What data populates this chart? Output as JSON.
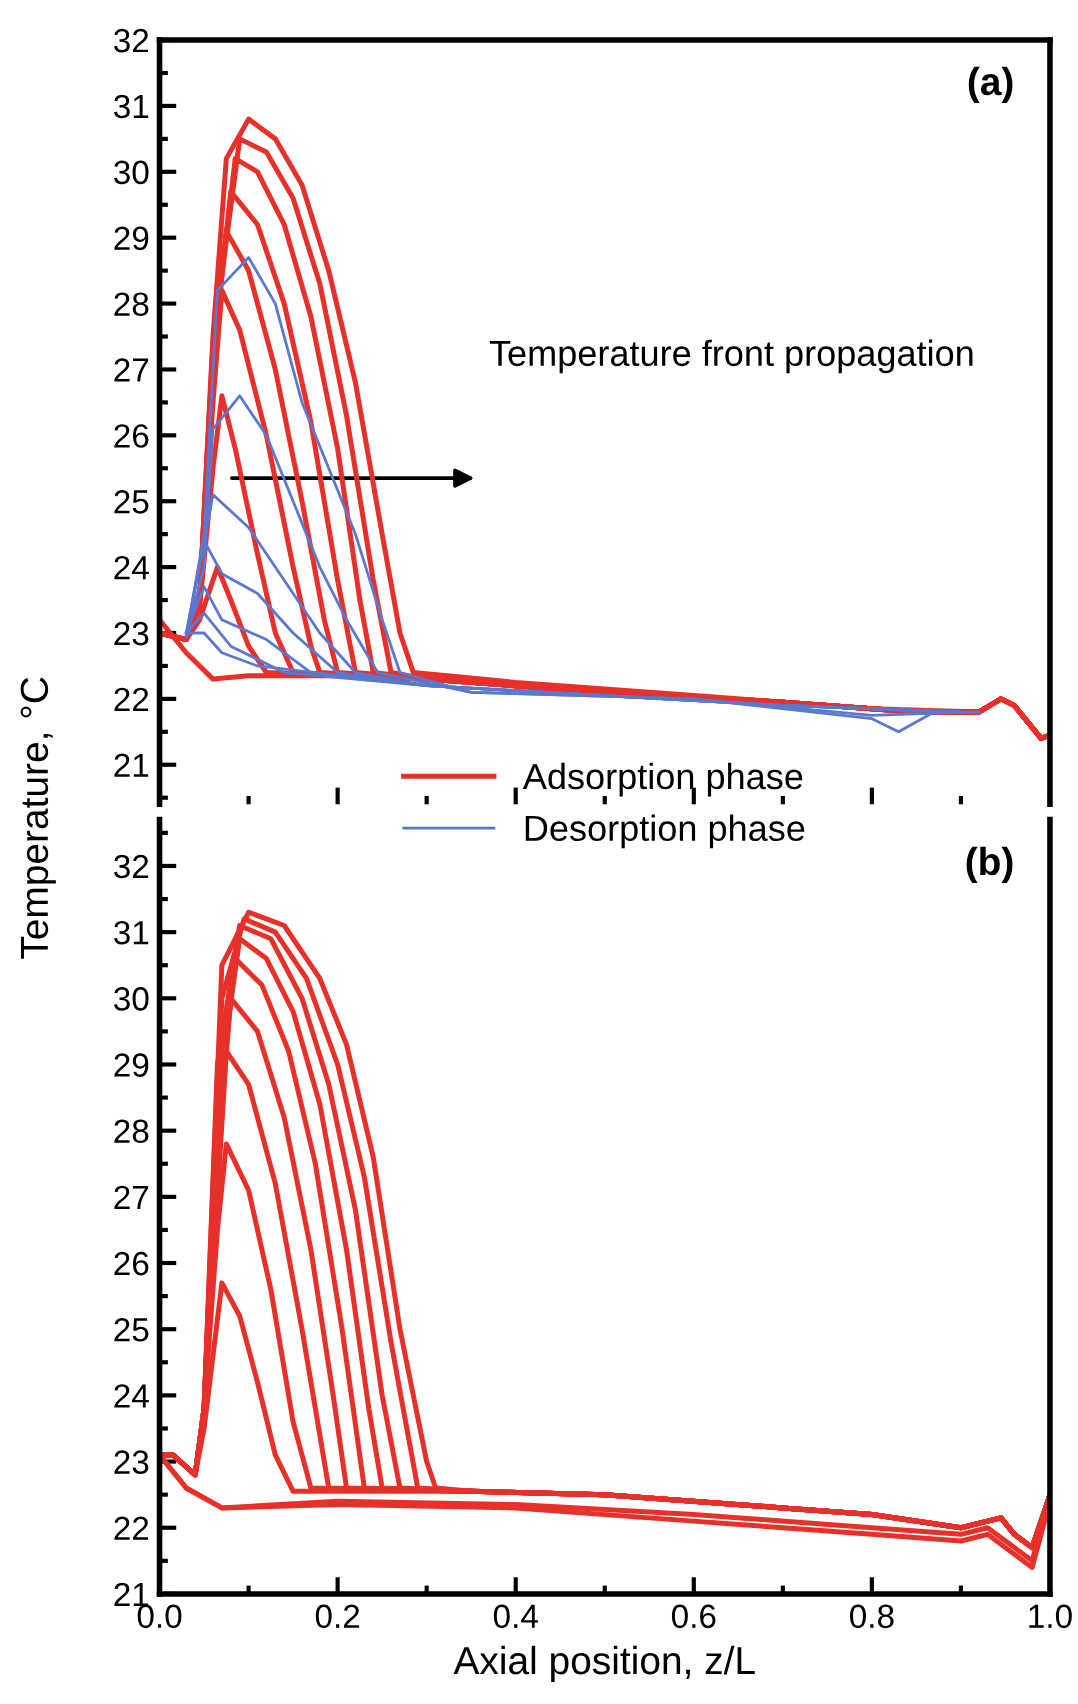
{
  "chart_data": [
    {
      "type": "line",
      "title": "(a)",
      "ylabel": "Temperature, °C",
      "annotations": [
        "Temperature front propagation"
      ],
      "xlim": [
        0,
        1
      ],
      "ylim": [
        20.4,
        32
      ],
      "xticks": [
        0,
        0.2,
        0.4,
        0.6,
        0.8,
        1
      ],
      "yticks": [
        21,
        22,
        23,
        24,
        25,
        26,
        27,
        28,
        29,
        30,
        31,
        32
      ],
      "tick_labels": "y",
      "legend": "bottom",
      "grid": false,
      "marker": "none",
      "line_style": "solid",
      "series": [
        {
          "name": "Adsorption phase",
          "color": "#e8302a",
          "x": [
            0,
            0.03,
            0.06,
            0.1,
            0.2,
            0.3,
            0.5,
            0.7,
            0.85,
            0.92,
            0.945,
            0.96,
            0.99,
            1.0
          ],
          "values": [
            23.2,
            22.7,
            22.3,
            22.35,
            22.35,
            22.3,
            22.1,
            21.95,
            21.8,
            21.8,
            22.0,
            21.9,
            21.4,
            21.45
          ]
        },
        {
          "color": "#e8302a",
          "x": [
            0,
            0.03,
            0.045,
            0.065,
            0.08,
            0.1,
            0.12,
            0.3,
            0.5,
            0.7,
            0.85,
            0.92,
            0.945,
            0.96,
            0.99,
            1.0
          ],
          "values": [
            23.0,
            22.9,
            23.2,
            24.0,
            23.5,
            22.8,
            22.4,
            22.3,
            22.1,
            21.95,
            21.8,
            21.8,
            22.0,
            21.9,
            21.4,
            21.45
          ]
        },
        {
          "color": "#e8302a",
          "x": [
            0,
            0.03,
            0.045,
            0.06,
            0.07,
            0.085,
            0.11,
            0.13,
            0.15,
            0.3,
            0.5,
            0.7,
            0.85,
            0.92,
            0.945,
            0.96,
            0.99,
            1.0
          ],
          "values": [
            23.0,
            22.9,
            23.4,
            25.5,
            26.6,
            25.8,
            24.2,
            23.0,
            22.4,
            22.3,
            22.1,
            21.95,
            21.8,
            21.8,
            22.0,
            21.9,
            21.4,
            21.45
          ]
        },
        {
          "color": "#e8302a",
          "x": [
            0,
            0.03,
            0.045,
            0.06,
            0.07,
            0.09,
            0.12,
            0.15,
            0.17,
            0.18,
            0.3,
            0.5,
            0.7,
            0.85,
            0.92,
            0.945,
            0.96,
            0.99,
            1.0
          ],
          "values": [
            23.0,
            22.9,
            23.5,
            26.5,
            28.2,
            27.6,
            26.0,
            24.0,
            22.8,
            22.4,
            22.3,
            22.1,
            21.95,
            21.8,
            21.8,
            22.0,
            21.9,
            21.4,
            21.45
          ]
        },
        {
          "color": "#e8302a",
          "x": [
            0,
            0.03,
            0.045,
            0.06,
            0.075,
            0.1,
            0.13,
            0.16,
            0.185,
            0.2,
            0.3,
            0.5,
            0.7,
            0.85,
            0.92,
            0.945,
            0.96,
            0.99,
            1.0
          ],
          "values": [
            23.0,
            22.9,
            23.5,
            27.0,
            29.1,
            28.5,
            27.0,
            25.0,
            23.2,
            22.4,
            22.3,
            22.1,
            21.95,
            21.8,
            21.8,
            22.0,
            21.9,
            21.4,
            21.45
          ]
        },
        {
          "color": "#e8302a",
          "x": [
            0,
            0.03,
            0.045,
            0.06,
            0.08,
            0.11,
            0.14,
            0.17,
            0.2,
            0.22,
            0.3,
            0.5,
            0.7,
            0.85,
            0.92,
            0.945,
            0.96,
            0.99,
            1.0
          ],
          "values": [
            23.0,
            22.9,
            23.5,
            27.2,
            29.7,
            29.2,
            28.0,
            26.2,
            23.8,
            22.4,
            22.3,
            22.1,
            21.95,
            21.8,
            21.8,
            22.0,
            21.9,
            21.4,
            21.45
          ]
        },
        {
          "color": "#e8302a",
          "x": [
            0,
            0.03,
            0.045,
            0.06,
            0.085,
            0.11,
            0.14,
            0.17,
            0.2,
            0.225,
            0.24,
            0.3,
            0.5,
            0.7,
            0.85,
            0.92,
            0.945,
            0.96,
            0.99,
            1.0
          ],
          "values": [
            23.0,
            22.9,
            23.5,
            27.3,
            30.2,
            30.0,
            29.2,
            27.8,
            25.8,
            23.5,
            22.4,
            22.3,
            22.1,
            21.95,
            21.8,
            21.8,
            22.0,
            21.9,
            21.4,
            21.45
          ]
        },
        {
          "color": "#e8302a",
          "x": [
            0,
            0.03,
            0.045,
            0.06,
            0.09,
            0.12,
            0.15,
            0.18,
            0.21,
            0.24,
            0.26,
            0.3,
            0.5,
            0.7,
            0.85,
            0.92,
            0.945,
            0.96,
            0.99,
            1.0
          ],
          "values": [
            23.0,
            22.9,
            23.5,
            27.4,
            30.5,
            30.3,
            29.6,
            28.3,
            26.3,
            23.8,
            22.4,
            22.3,
            22.1,
            21.95,
            21.8,
            21.8,
            22.0,
            21.9,
            21.4,
            21.45
          ]
        },
        {
          "color": "#e8302a",
          "x": [
            0,
            0.03,
            0.045,
            0.06,
            0.075,
            0.1,
            0.13,
            0.16,
            0.19,
            0.22,
            0.25,
            0.27,
            0.285,
            0.4,
            0.6,
            0.8,
            0.92,
            0.945,
            0.96,
            0.99,
            1.0
          ],
          "values": [
            23.0,
            22.9,
            23.5,
            27.5,
            30.2,
            30.8,
            30.5,
            29.8,
            28.5,
            26.8,
            24.5,
            23.0,
            22.4,
            22.25,
            22.05,
            21.85,
            21.8,
            22.0,
            21.9,
            21.4,
            21.45
          ]
        },
        {
          "name": "Desorption phase",
          "color": "#5a78d0",
          "x": [
            0.03,
            0.05,
            0.065,
            0.1,
            0.13,
            0.16,
            0.19,
            0.22,
            0.25,
            0.27,
            0.35,
            0.6,
            0.8,
            0.83,
            0.87,
            0.92
          ],
          "values": [
            22.95,
            24.5,
            28.2,
            28.7,
            28.0,
            26.5,
            25.5,
            24.5,
            23.2,
            22.4,
            22.1,
            22.0,
            21.7,
            21.5,
            21.8,
            21.8
          ]
        },
        {
          "color": "#5a78d0",
          "x": [
            0.03,
            0.05,
            0.06,
            0.09,
            0.12,
            0.15,
            0.18,
            0.21,
            0.245,
            0.35,
            0.6,
            0.8,
            0.9
          ],
          "values": [
            22.95,
            24.0,
            26.1,
            26.6,
            26.0,
            25.0,
            24.0,
            23.2,
            22.4,
            22.1,
            22.0,
            21.75,
            21.8
          ]
        },
        {
          "color": "#5a78d0",
          "x": [
            0.03,
            0.06,
            0.1,
            0.14,
            0.18,
            0.22,
            0.3,
            0.5,
            0.7,
            0.9
          ],
          "values": [
            22.95,
            25.1,
            24.6,
            23.8,
            23.0,
            22.4,
            22.2,
            22.05,
            21.9,
            21.8
          ]
        },
        {
          "color": "#5a78d0",
          "x": [
            0.03,
            0.05,
            0.07,
            0.11,
            0.15,
            0.2,
            0.3,
            0.5,
            0.7,
            0.9
          ],
          "values": [
            23.0,
            24.4,
            23.9,
            23.6,
            23.0,
            22.4,
            22.2,
            22.05,
            21.9,
            21.8
          ]
        },
        {
          "color": "#5a78d0",
          "x": [
            0.03,
            0.05,
            0.07,
            0.12,
            0.17,
            0.3,
            0.5,
            0.7,
            0.9
          ],
          "values": [
            23.0,
            23.7,
            23.2,
            22.9,
            22.4,
            22.2,
            22.05,
            21.9,
            21.8
          ]
        },
        {
          "color": "#5a78d0",
          "x": [
            0.03,
            0.05,
            0.08,
            0.14,
            0.3,
            0.5,
            0.7,
            0.9
          ],
          "values": [
            23.0,
            23.3,
            22.8,
            22.4,
            22.2,
            22.05,
            21.9,
            21.8
          ]
        },
        {
          "color": "#5a78d0",
          "x": [
            0.03,
            0.05,
            0.07,
            0.11,
            0.3,
            0.5,
            0.7,
            0.9
          ],
          "values": [
            23.0,
            23.0,
            22.7,
            22.5,
            22.2,
            22.05,
            21.9,
            21.8
          ]
        }
      ]
    },
    {
      "type": "line",
      "title": "(b)",
      "xlabel": "Axial position, z/L",
      "xlim": [
        0,
        1
      ],
      "ylim": [
        21,
        32.7
      ],
      "xticks": [
        {
          "value": 0,
          "label": "0.0"
        },
        {
          "value": 0.2,
          "label": "0.2"
        },
        {
          "value": 0.4,
          "label": "0.4"
        },
        {
          "value": 0.6,
          "label": "0.6"
        },
        {
          "value": 0.8,
          "label": "0.8"
        },
        {
          "value": 1,
          "label": "1.0"
        }
      ],
      "yticks": [
        21,
        22,
        23,
        24,
        25,
        26,
        27,
        28,
        29,
        30,
        31,
        32
      ],
      "grid": false,
      "marker": "none",
      "line_style": "solid",
      "series": [
        {
          "color": "#e8302a",
          "x": [
            0,
            0.03,
            0.07,
            0.2,
            0.4,
            0.6,
            0.8,
            0.9,
            0.93,
            0.96,
            0.98,
            1.0
          ],
          "values": [
            23.1,
            22.6,
            22.3,
            22.4,
            22.35,
            22.2,
            22.0,
            21.9,
            22.0,
            21.7,
            21.5,
            22.5
          ]
        },
        {
          "color": "#e8302a",
          "x": [
            0,
            0.03,
            0.07,
            0.2,
            0.4,
            0.6,
            0.8,
            0.9,
            0.93,
            0.96,
            0.98,
            1.0
          ],
          "values": [
            23.1,
            22.6,
            22.3,
            22.35,
            22.3,
            22.1,
            21.9,
            21.8,
            21.9,
            21.6,
            21.4,
            22.4
          ]
        },
        {
          "color": "#e8302a",
          "x": [
            0,
            0.015,
            0.04,
            0.05,
            0.07,
            0.09,
            0.11,
            0.13,
            0.15,
            0.35,
            0.5,
            0.7,
            0.8,
            0.9,
            0.93,
            0.945,
            0.96,
            0.98,
            1.0
          ],
          "values": [
            23.1,
            23.1,
            22.8,
            23.5,
            25.7,
            25.2,
            24.2,
            23.1,
            22.55,
            22.55,
            22.5,
            22.3,
            22.2,
            22.0,
            22.1,
            22.15,
            21.9,
            21.7,
            22.5
          ]
        },
        {
          "color": "#e8302a",
          "x": [
            0,
            0.015,
            0.04,
            0.05,
            0.065,
            0.075,
            0.1,
            0.125,
            0.15,
            0.17,
            0.35,
            0.5,
            0.7,
            0.8,
            0.9,
            0.93,
            0.945,
            0.96,
            0.98,
            1.0
          ],
          "values": [
            23.1,
            23.1,
            22.8,
            23.8,
            26.5,
            27.8,
            27.1,
            25.6,
            23.6,
            22.6,
            22.55,
            22.5,
            22.3,
            22.2,
            22.0,
            22.1,
            22.15,
            21.9,
            21.7,
            22.5
          ]
        },
        {
          "color": "#e8302a",
          "x": [
            0,
            0.015,
            0.04,
            0.05,
            0.065,
            0.075,
            0.1,
            0.13,
            0.16,
            0.19,
            0.35,
            0.5,
            0.7,
            0.8,
            0.9,
            0.93,
            0.945,
            0.96,
            0.98,
            1.0
          ],
          "values": [
            23.1,
            23.1,
            22.8,
            23.8,
            27.0,
            29.2,
            28.7,
            27.2,
            25.0,
            22.6,
            22.55,
            22.5,
            22.3,
            22.2,
            22.0,
            22.1,
            22.15,
            21.9,
            21.7,
            22.5
          ]
        },
        {
          "color": "#e8302a",
          "x": [
            0,
            0.015,
            0.04,
            0.05,
            0.065,
            0.08,
            0.11,
            0.14,
            0.17,
            0.195,
            0.21,
            0.35,
            0.5,
            0.7,
            0.8,
            0.9,
            0.93,
            0.945,
            0.96,
            0.98,
            1.0
          ],
          "values": [
            23.1,
            23.1,
            22.8,
            23.8,
            27.5,
            30.0,
            29.5,
            28.2,
            26.2,
            24.0,
            22.6,
            22.55,
            22.5,
            22.3,
            22.2,
            22.0,
            22.1,
            22.15,
            21.9,
            21.7,
            22.5
          ]
        },
        {
          "color": "#e8302a",
          "x": [
            0,
            0.015,
            0.04,
            0.05,
            0.065,
            0.085,
            0.115,
            0.145,
            0.175,
            0.205,
            0.23,
            0.35,
            0.5,
            0.7,
            0.8,
            0.9,
            0.93,
            0.945,
            0.96,
            0.98,
            1.0
          ],
          "values": [
            23.1,
            23.1,
            22.8,
            23.8,
            28.0,
            30.6,
            30.2,
            29.2,
            27.5,
            25.0,
            22.6,
            22.55,
            22.5,
            22.3,
            22.2,
            22.0,
            22.1,
            22.15,
            21.9,
            21.7,
            22.5
          ]
        },
        {
          "color": "#e8302a",
          "x": [
            0,
            0.015,
            0.04,
            0.05,
            0.065,
            0.09,
            0.12,
            0.15,
            0.18,
            0.21,
            0.235,
            0.25,
            0.35,
            0.5,
            0.7,
            0.8,
            0.9,
            0.93,
            0.945,
            0.96,
            0.98,
            1.0
          ],
          "values": [
            23.1,
            23.1,
            22.8,
            23.8,
            28.5,
            30.9,
            30.6,
            29.8,
            28.4,
            26.2,
            23.8,
            22.6,
            22.55,
            22.5,
            22.3,
            22.2,
            22.0,
            22.1,
            22.15,
            21.9,
            21.7,
            22.5
          ]
        },
        {
          "color": "#e8302a",
          "x": [
            0,
            0.015,
            0.04,
            0.05,
            0.065,
            0.09,
            0.125,
            0.16,
            0.19,
            0.22,
            0.25,
            0.27,
            0.35,
            0.5,
            0.7,
            0.8,
            0.9,
            0.93,
            0.945,
            0.96,
            0.98,
            1.0
          ],
          "values": [
            23.1,
            23.1,
            22.8,
            23.8,
            29.0,
            31.1,
            30.9,
            30.0,
            28.7,
            26.8,
            24.0,
            22.6,
            22.55,
            22.5,
            22.3,
            22.2,
            22.0,
            22.1,
            22.15,
            21.9,
            21.7,
            22.5
          ]
        },
        {
          "color": "#e8302a",
          "x": [
            0,
            0.015,
            0.04,
            0.05,
            0.07,
            0.095,
            0.13,
            0.165,
            0.2,
            0.23,
            0.26,
            0.29,
            0.35,
            0.5,
            0.7,
            0.8,
            0.9,
            0.93,
            0.945,
            0.96,
            0.98,
            1.0
          ],
          "values": [
            23.1,
            23.1,
            22.8,
            23.8,
            30.0,
            31.2,
            31.0,
            30.3,
            29.0,
            27.3,
            24.8,
            22.6,
            22.55,
            22.5,
            22.3,
            22.2,
            22.0,
            22.1,
            22.15,
            21.9,
            21.7,
            22.5
          ]
        },
        {
          "color": "#e8302a",
          "x": [
            0,
            0.015,
            0.04,
            0.05,
            0.07,
            0.1,
            0.14,
            0.18,
            0.21,
            0.24,
            0.27,
            0.3,
            0.31,
            0.35,
            0.5,
            0.7,
            0.8,
            0.9,
            0.93,
            0.945,
            0.96,
            0.98,
            1.0
          ],
          "values": [
            23.1,
            23.1,
            22.8,
            23.8,
            30.5,
            31.3,
            31.1,
            30.3,
            29.3,
            27.6,
            25.0,
            23.0,
            22.6,
            22.55,
            22.5,
            22.3,
            22.2,
            22.0,
            22.1,
            22.15,
            21.9,
            21.7,
            22.5
          ]
        }
      ]
    }
  ]
}
